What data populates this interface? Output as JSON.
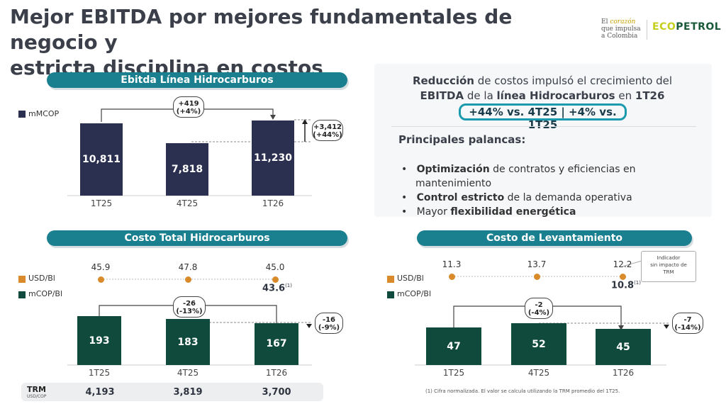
{
  "header": {
    "title_line1": "Mejor EBITDA por mejores fundamentales de negocio y",
    "title_line2": "estricta disciplina en costos",
    "tagline": [
      "El",
      "corazón",
      "que impulsa",
      "a Colombia"
    ],
    "logo_eco": "ECO",
    "logo_rest": "PETROL"
  },
  "ebitda_panel": {
    "pill": "Ebitda Línea Hidrocarburos",
    "legend": "mMCOP",
    "change_bubble": [
      "+419",
      "(+4%)"
    ],
    "side_bubble": [
      "+3,412",
      "(+44%)"
    ]
  },
  "summary_panel": {
    "line1_bold": "Reducción",
    "line1_rest": " de costos impulsó el crecimiento del",
    "line2_bold": "EBITDA",
    "line2_mid": " de la ",
    "line2_bold2": "línea Hidrocarburos",
    "line2_rest": " en ",
    "line2_bold3": "1T26",
    "highlight": "+44% vs. 4T25 | +4% vs. 1T25",
    "levers_title": "Principales palancas:",
    "levers": [
      {
        "bold": "Optimización",
        "rest": " de contratos y eficiencias en"
      },
      {
        "bold": "",
        "rest": "mantenimiento"
      },
      {
        "bold": "Control estricto",
        "rest": " de la demanda operativa"
      },
      {
        "bold": "",
        "rest": "Mayor ",
        "bold_end": "flexibilidad energética"
      }
    ]
  },
  "costo_panel": {
    "pill": "Costo Total Hidrocarburos",
    "legend_usd": "USD/Bl",
    "legend_cop": "mCOP/Bl",
    "normalized_value": "43.6",
    "normalized_sup": "(1)",
    "change_bubble": [
      "-26",
      "(-13%)"
    ],
    "side_bubble": [
      "-16",
      "(-9%)"
    ],
    "trm_label": "TRM",
    "trm_sub": "USD/COP",
    "trm_values": [
      "4,193",
      "3,819",
      "3,700"
    ]
  },
  "lev_panel": {
    "pill": "Costo de Levantamiento",
    "legend_usd": "USD/Bl",
    "legend_cop": "mCOP/Bl",
    "note_box": [
      "Indicador",
      "sin impacto de",
      "TRM"
    ],
    "normalized_value": "10.8",
    "normalized_sup": "(1)",
    "change_bubble": [
      "-2",
      "(-4%)"
    ],
    "side_bubble": [
      "-7",
      "(-14%)"
    ],
    "footnote": "(1) Cifra normalizada. El valor se calcula utilizando la TRM promedio del 1T25."
  },
  "colors": {
    "navy": "#2b3050",
    "green": "#0f4a3c",
    "teal": "#1a7f8e",
    "orange": "#d98a2a"
  },
  "chart_data": [
    {
      "type": "bar",
      "title": "Ebitda Línea Hidrocarburos",
      "categories": [
        "1T25",
        "4T25",
        "1T26"
      ],
      "series": [
        {
          "name": "mMCOP",
          "values": [
            10811,
            7818,
            11230
          ]
        }
      ],
      "value_labels": [
        "10,811",
        "7,818",
        "11,230"
      ],
      "ylim": [
        0,
        12000
      ]
    },
    {
      "type": "bar",
      "title": "Costo Total Hidrocarburos",
      "categories": [
        "1T25",
        "4T25",
        "1T26"
      ],
      "series": [
        {
          "name": "mCOP/Bl",
          "values": [
            193,
            183,
            167
          ]
        },
        {
          "name": "USD/Bl",
          "values": [
            45.9,
            47.8,
            45.0
          ]
        }
      ],
      "value_labels": [
        "193",
        "183",
        "167"
      ],
      "usd_labels": [
        "45.9",
        "47.8",
        "45.0"
      ],
      "ylim": [
        0,
        200
      ]
    },
    {
      "type": "bar",
      "title": "Costo de Levantamiento",
      "categories": [
        "1T25",
        "4T25",
        "1T26"
      ],
      "series": [
        {
          "name": "mCOP/Bl",
          "values": [
            47,
            52,
            45
          ]
        },
        {
          "name": "USD/Bl",
          "values": [
            11.3,
            13.7,
            12.2
          ]
        }
      ],
      "value_labels": [
        "47",
        "52",
        "45"
      ],
      "usd_labels": [
        "11.3",
        "13.7",
        "12.2"
      ],
      "ylim": [
        0,
        55
      ]
    }
  ]
}
